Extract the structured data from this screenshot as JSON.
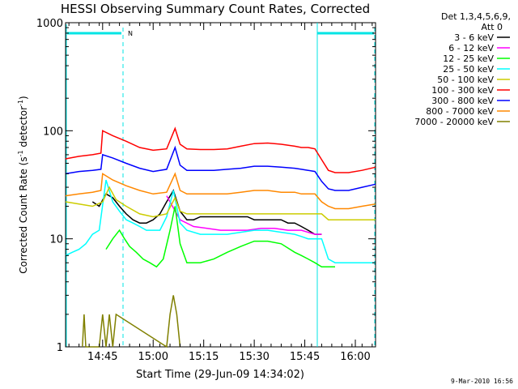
{
  "chart_data": {
    "type": "line",
    "title": "HESSI Observing Summary Count Rates, Corrected",
    "xlabel": "Start Time (29-Jun-09 14:34:02)",
    "ylabel_main": "Corrected Count Rate (s",
    "ylabel_sup1": "-1",
    "ylabel_mid": " detector",
    "ylabel_sup2": "-1",
    "ylabel_end": ")",
    "y_scale": "log",
    "ylim": [
      1,
      1000
    ],
    "xlim_minutes": [
      0,
      92
    ],
    "x_ticks": [
      {
        "minute": 11,
        "label": "14:45"
      },
      {
        "minute": 26,
        "label": "15:00"
      },
      {
        "minute": 41,
        "label": "15:15"
      },
      {
        "minute": 56,
        "label": "15:30"
      },
      {
        "minute": 71,
        "label": "15:45"
      },
      {
        "minute": 86,
        "label": "16:00"
      }
    ],
    "y_ticks": [
      {
        "value": 1,
        "label": "1"
      },
      {
        "value": 10,
        "label": "10"
      },
      {
        "value": 100,
        "label": "100"
      },
      {
        "value": 1000,
        "label": "1000"
      }
    ],
    "legend_header": [
      "Det 1,3,4,5,6,9,",
      "Att 0"
    ],
    "legend_placement": "right",
    "series": [
      {
        "name": "3 - 6 keV",
        "color": "#000000",
        "x": [
          8,
          10,
          12,
          14,
          16,
          18,
          20,
          22,
          24,
          26,
          28,
          30,
          32,
          34,
          36,
          38,
          40,
          42,
          44,
          46,
          48,
          50,
          52,
          54,
          56,
          58,
          60,
          62,
          64,
          66,
          68,
          70,
          72,
          74,
          76
        ],
        "y": [
          22,
          20,
          26,
          24,
          20,
          17,
          15,
          14,
          14,
          15,
          17,
          22,
          28,
          18,
          15,
          15,
          16,
          16,
          16,
          16,
          16,
          16,
          16,
          16,
          15,
          15,
          15,
          15,
          15,
          14,
          14,
          13,
          12,
          11,
          11
        ]
      },
      {
        "name": "6 - 12 keV",
        "color": "#ff00ff",
        "x": [
          30,
          34,
          38,
          42,
          46,
          50,
          54,
          58,
          62,
          66,
          70,
          74,
          76
        ],
        "y": [
          25,
          15,
          13,
          12.5,
          12,
          12,
          12,
          12.5,
          12.5,
          12,
          12,
          11,
          11
        ]
      },
      {
        "name": "12 - 25 keV",
        "color": "#00ff00",
        "x": [
          12,
          14,
          16,
          17.5,
          19,
          21,
          23,
          25,
          27,
          29,
          31,
          32.5,
          34,
          36,
          38,
          40,
          44,
          48,
          52,
          56,
          60,
          64,
          68,
          70,
          72,
          74,
          76,
          78,
          80
        ],
        "y": [
          8,
          10,
          12,
          10,
          8.5,
          7.5,
          6.5,
          6,
          5.5,
          6.5,
          12,
          20,
          9,
          6,
          6,
          6,
          6.5,
          7.5,
          8.5,
          9.5,
          9.5,
          9,
          7.5,
          7,
          6.5,
          6,
          5.5,
          5.5,
          5.5
        ]
      },
      {
        "name": "25 - 50 keV",
        "color": "#00ffff",
        "x": [
          0,
          2,
          4,
          6,
          8,
          10,
          12,
          14,
          16,
          18,
          20,
          22,
          24,
          26,
          28,
          30,
          32,
          34,
          36,
          40,
          44,
          48,
          52,
          56,
          60,
          64,
          68,
          70,
          72,
          74,
          76,
          78,
          80,
          84,
          88,
          92
        ],
        "y": [
          7,
          7.5,
          8,
          9,
          11,
          12,
          35,
          22,
          18,
          15,
          14,
          13,
          12,
          12,
          12,
          16,
          28,
          14,
          12,
          11,
          11,
          11,
          11.5,
          12,
          12,
          11.5,
          11,
          10.5,
          10,
          10,
          10,
          6.5,
          6,
          6,
          6,
          6
        ]
      },
      {
        "name": "50 - 100 keV",
        "color": "#cccc00",
        "x": [
          0,
          4,
          8,
          11,
          13,
          15,
          18,
          22,
          26,
          30,
          32.5,
          34,
          36,
          40,
          44,
          48,
          52,
          56,
          60,
          64,
          68,
          70,
          72,
          74,
          76,
          78,
          80,
          84,
          88,
          92
        ],
        "y": [
          22,
          21,
          20,
          22,
          30,
          23,
          20,
          17,
          16,
          17,
          24,
          18,
          17,
          17,
          17,
          17,
          17,
          17,
          17,
          17,
          17,
          17,
          17,
          17,
          17,
          15,
          15,
          15,
          15,
          15
        ]
      },
      {
        "name": "100 - 300 keV",
        "color": "#ff0000",
        "x": [
          0,
          4,
          8,
          10.5,
          11,
          14,
          18,
          22,
          26,
          30,
          32.5,
          34,
          36,
          40,
          44,
          48,
          52,
          56,
          60,
          64,
          68,
          70,
          72,
          74,
          76,
          78,
          80,
          84,
          88,
          92
        ],
        "y": [
          55,
          58,
          60,
          62,
          100,
          90,
          80,
          70,
          66,
          68,
          105,
          75,
          68,
          67,
          67,
          68,
          72,
          76,
          77,
          75,
          72,
          70,
          70,
          68,
          54,
          43,
          41,
          41,
          43,
          46
        ]
      },
      {
        "name": "300 - 800 keV",
        "color": "#0000ff",
        "x": [
          0,
          4,
          8,
          10.5,
          11,
          14,
          18,
          22,
          26,
          30,
          32.5,
          34,
          36,
          40,
          44,
          48,
          52,
          56,
          60,
          64,
          68,
          70,
          72,
          74,
          76,
          78,
          80,
          84,
          88,
          92
        ],
        "y": [
          40,
          42,
          43,
          44,
          60,
          56,
          50,
          45,
          42,
          44,
          70,
          48,
          43,
          43,
          43,
          44,
          45,
          47,
          47,
          46,
          45,
          44,
          43,
          42,
          34,
          29,
          28,
          28,
          30,
          32
        ]
      },
      {
        "name": "800 - 7000 keV",
        "color": "#ff8800",
        "x": [
          0,
          4,
          8,
          10.5,
          11,
          14,
          18,
          22,
          26,
          30,
          32.5,
          34,
          36,
          40,
          44,
          48,
          52,
          56,
          60,
          64,
          68,
          70,
          72,
          74,
          76,
          78,
          80,
          84,
          88,
          92
        ],
        "y": [
          25,
          26,
          27,
          28,
          40,
          35,
          31,
          28,
          26,
          27,
          40,
          28,
          26,
          26,
          26,
          26,
          27,
          28,
          28,
          27,
          27,
          26,
          26,
          26,
          22,
          20,
          19,
          19,
          20,
          21
        ]
      },
      {
        "name": "7000 - 20000 keV",
        "color": "#808000",
        "x": [
          5,
          5.5,
          6,
          10,
          11,
          12,
          13,
          14,
          15,
          30,
          31,
          32,
          33,
          34
        ],
        "y": [
          1,
          2,
          1,
          1,
          2,
          1,
          2,
          1,
          2,
          1,
          2,
          3,
          2,
          1
        ]
      }
    ],
    "annotations": {
      "marker_label": "N",
      "timestamp": "9-Mar-2010 16:56"
    }
  }
}
